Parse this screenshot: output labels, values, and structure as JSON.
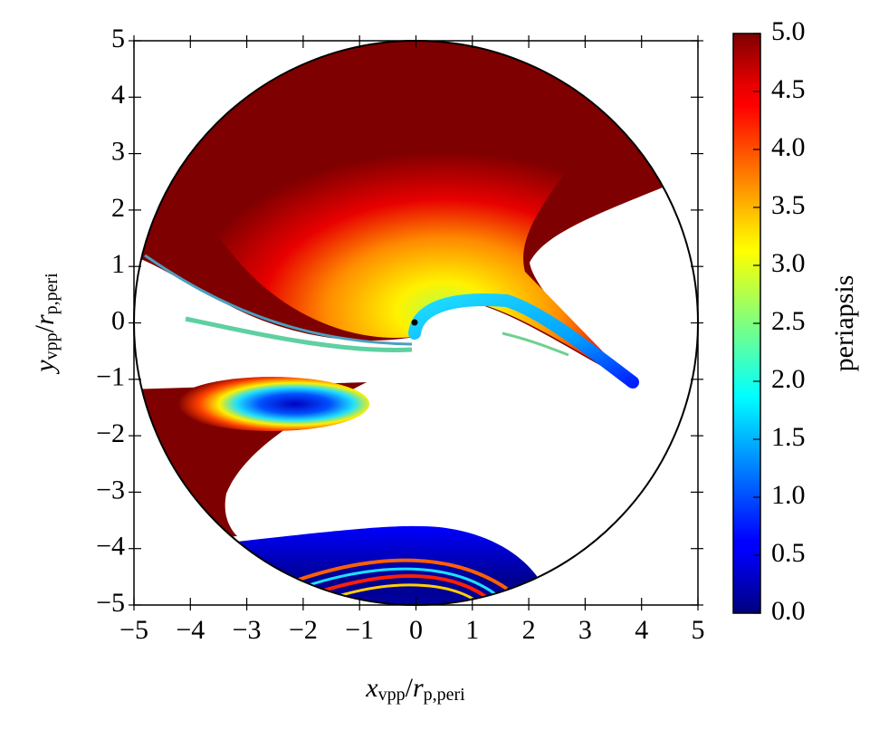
{
  "chart_data": {
    "type": "heatmap",
    "xlabel_parts": [
      "x",
      "vpp",
      "/",
      "r",
      "p,peri"
    ],
    "ylabel_parts": [
      "y",
      "vpp",
      "/",
      "r",
      "p,peri"
    ],
    "xlim": [
      -5,
      5
    ],
    "ylim": [
      -5,
      5
    ],
    "xticks": [
      {
        "value": -5,
        "label": "−5"
      },
      {
        "value": -4,
        "label": "−4"
      },
      {
        "value": -3,
        "label": "−3"
      },
      {
        "value": -2,
        "label": "−2"
      },
      {
        "value": -1,
        "label": "−1"
      },
      0,
      1,
      2,
      3,
      4,
      5
    ],
    "yticks": [
      {
        "value": -5,
        "label": "−5"
      },
      {
        "value": -4,
        "label": "−4"
      },
      {
        "value": -3,
        "label": "−3"
      },
      {
        "value": -2,
        "label": "−2"
      },
      {
        "value": -1,
        "label": "−1"
      },
      0,
      1,
      2,
      3,
      4,
      5
    ],
    "colormap": "jet",
    "colorbar_label": "periapsis",
    "clim": [
      0,
      5
    ],
    "colorbar_ticks": [
      {
        "value": 0,
        "label": "0.0"
      },
      0.5,
      {
        "value": 1,
        "label": "1.0"
      },
      1.5,
      {
        "value": 2,
        "label": "2.0"
      },
      2.5,
      {
        "value": 3,
        "label": "3.0"
      },
      3.5,
      {
        "value": 4,
        "label": "4.0"
      },
      4.5,
      {
        "value": 5,
        "label": "5.0"
      }
    ]
  }
}
